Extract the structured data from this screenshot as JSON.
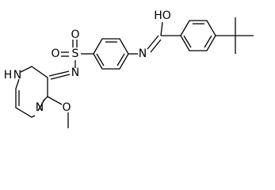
{
  "atoms": [
    {
      "label": "HO"
    },
    {
      "label": "N"
    },
    {
      "label": "S"
    },
    {
      "label": "O"
    },
    {
      "label": "O"
    },
    {
      "label": "N"
    },
    {
      "label": "N"
    },
    {
      "label": "H"
    },
    {
      "label": "N"
    },
    {
      "label": "O"
    }
  ]
}
